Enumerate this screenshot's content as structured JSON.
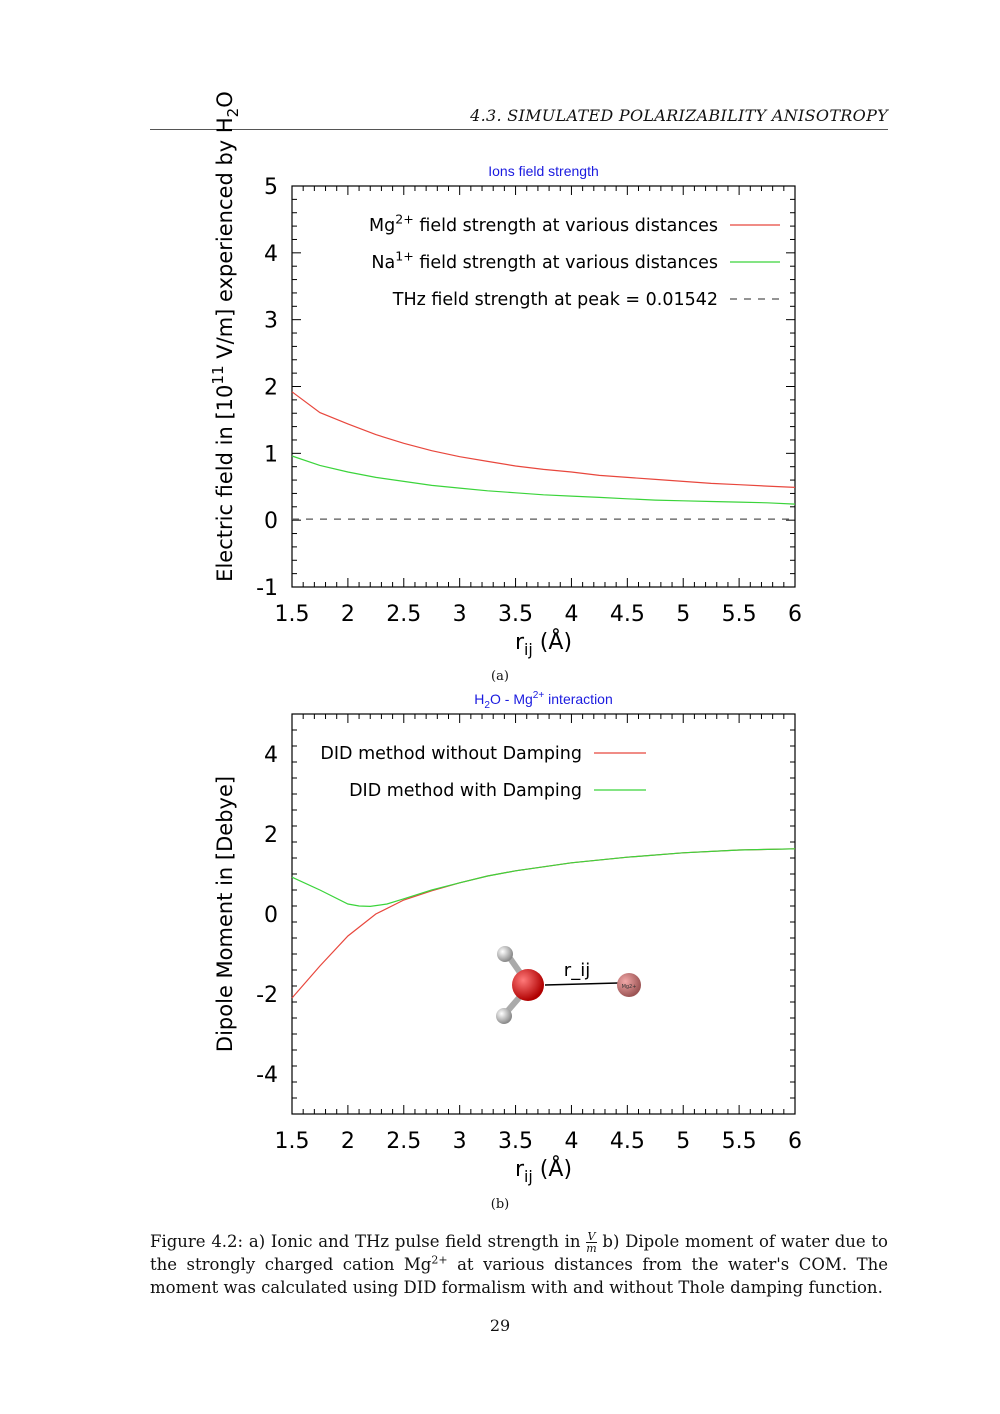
{
  "page": {
    "running_head": "4.3.  SIMULATED POLARIZABILITY ANISOTROPY",
    "page_number": "29"
  },
  "figure": {
    "sublabel_a": "(a)",
    "sublabel_b": "(b)",
    "caption": {
      "part1": "Figure 4.2: a) Ionic and THz pulse field strength in",
      "frac_num": "V",
      "frac_den": "m",
      "part2": " b) Dipole moment of water due to the strongly charged cation Mg",
      "sup": "2+",
      "part3": " at various distances from the water's COM. The moment was calculated using DID formalism with and without Thole damping function."
    }
  },
  "molecule_label": "r_ij",
  "molecule_ion_label": "Mg2+",
  "chart_data": [
    {
      "type": "line",
      "title": "Ions field strength",
      "xlabel": "r_ij (Å)",
      "ylabel": "Electric field in [10^11 V/m] experienced by H_2O",
      "xlim": [
        1.5,
        6
      ],
      "ylim": [
        -1,
        5
      ],
      "xticks": [
        1.5,
        2,
        2.5,
        3,
        3.5,
        4,
        4.5,
        5,
        5.5,
        6
      ],
      "xtick_labels": [
        "1.5",
        "2",
        "2.5",
        "3",
        "3.5",
        "4",
        "4.5",
        "5",
        "5.5",
        "6"
      ],
      "yticks": [
        -1,
        0,
        1,
        2,
        3,
        4,
        5
      ],
      "ytick_labels": [
        "-1",
        "0",
        "1",
        "2",
        "3",
        "4",
        "5"
      ],
      "legend_position": "top-right",
      "grid": false,
      "series": [
        {
          "name": "Mg2+ field strength at various distances",
          "color": "#e8473d",
          "dash": "solid",
          "x": [
            1.5,
            1.75,
            2.0,
            2.25,
            2.5,
            2.75,
            3.0,
            3.25,
            3.5,
            3.75,
            4.0,
            4.25,
            4.5,
            4.75,
            5.0,
            5.25,
            5.5,
            5.75,
            6.0
          ],
          "y": [
            1.92,
            1.61,
            1.44,
            1.28,
            1.15,
            1.04,
            0.95,
            0.88,
            0.81,
            0.76,
            0.72,
            0.67,
            0.64,
            0.61,
            0.58,
            0.55,
            0.53,
            0.51,
            0.49
          ]
        },
        {
          "name": "Na1+ field strength at various distances",
          "color": "#3bd43b",
          "dash": "solid",
          "x": [
            1.5,
            1.75,
            2.0,
            2.25,
            2.5,
            2.75,
            3.0,
            3.25,
            3.5,
            3.75,
            4.0,
            4.25,
            4.5,
            4.75,
            5.0,
            5.25,
            5.5,
            5.75,
            6.0
          ],
          "y": [
            0.96,
            0.82,
            0.72,
            0.64,
            0.58,
            0.52,
            0.48,
            0.44,
            0.41,
            0.38,
            0.36,
            0.34,
            0.32,
            0.3,
            0.29,
            0.28,
            0.27,
            0.26,
            0.24
          ]
        },
        {
          "name": "THz field strength at peak = 0.01542",
          "color": "#555555",
          "dash": "dashed",
          "x": [
            1.5,
            6.0
          ],
          "y": [
            0.01542,
            0.01542
          ]
        }
      ]
    },
    {
      "type": "line",
      "title": "H2O - Mg2+ interaction",
      "xlabel": "r_ij (Å)",
      "ylabel": "Dipole Moment in [Debye]",
      "xlim": [
        1.5,
        6
      ],
      "ylim": [
        -5,
        5
      ],
      "xticks": [
        1.5,
        2,
        2.5,
        3,
        3.5,
        4,
        4.5,
        5,
        5.5,
        6
      ],
      "xtick_labels": [
        "1.5",
        "2",
        "2.5",
        "3",
        "3.5",
        "4",
        "4.5",
        "5",
        "5.5",
        "6"
      ],
      "yticks": [
        -4,
        -2,
        0,
        2,
        4
      ],
      "ytick_labels": [
        "-4",
        "-2",
        "0",
        "2",
        "4"
      ],
      "legend_position": "top-left",
      "grid": false,
      "series": [
        {
          "name": "DID method without Damping",
          "color": "#e8473d",
          "dash": "solid",
          "x": [
            1.5,
            1.75,
            2.0,
            2.25,
            2.5,
            2.75,
            3.0,
            3.25,
            3.5,
            4.0,
            4.5,
            5.0,
            5.5,
            6.0
          ],
          "y": [
            -2.1,
            -1.3,
            -0.55,
            0.0,
            0.35,
            0.58,
            0.78,
            0.95,
            1.08,
            1.28,
            1.42,
            1.53,
            1.6,
            1.63
          ]
        },
        {
          "name": "DID method with Damping",
          "color": "#3bd43b",
          "dash": "solid",
          "x": [
            1.5,
            1.75,
            2.0,
            2.1,
            2.2,
            2.35,
            2.5,
            2.75,
            3.0,
            3.25,
            3.5,
            4.0,
            4.5,
            5.0,
            5.5,
            6.0
          ],
          "y": [
            0.92,
            0.6,
            0.25,
            0.2,
            0.19,
            0.25,
            0.38,
            0.6,
            0.78,
            0.95,
            1.08,
            1.28,
            1.42,
            1.53,
            1.6,
            1.63
          ]
        }
      ]
    }
  ]
}
